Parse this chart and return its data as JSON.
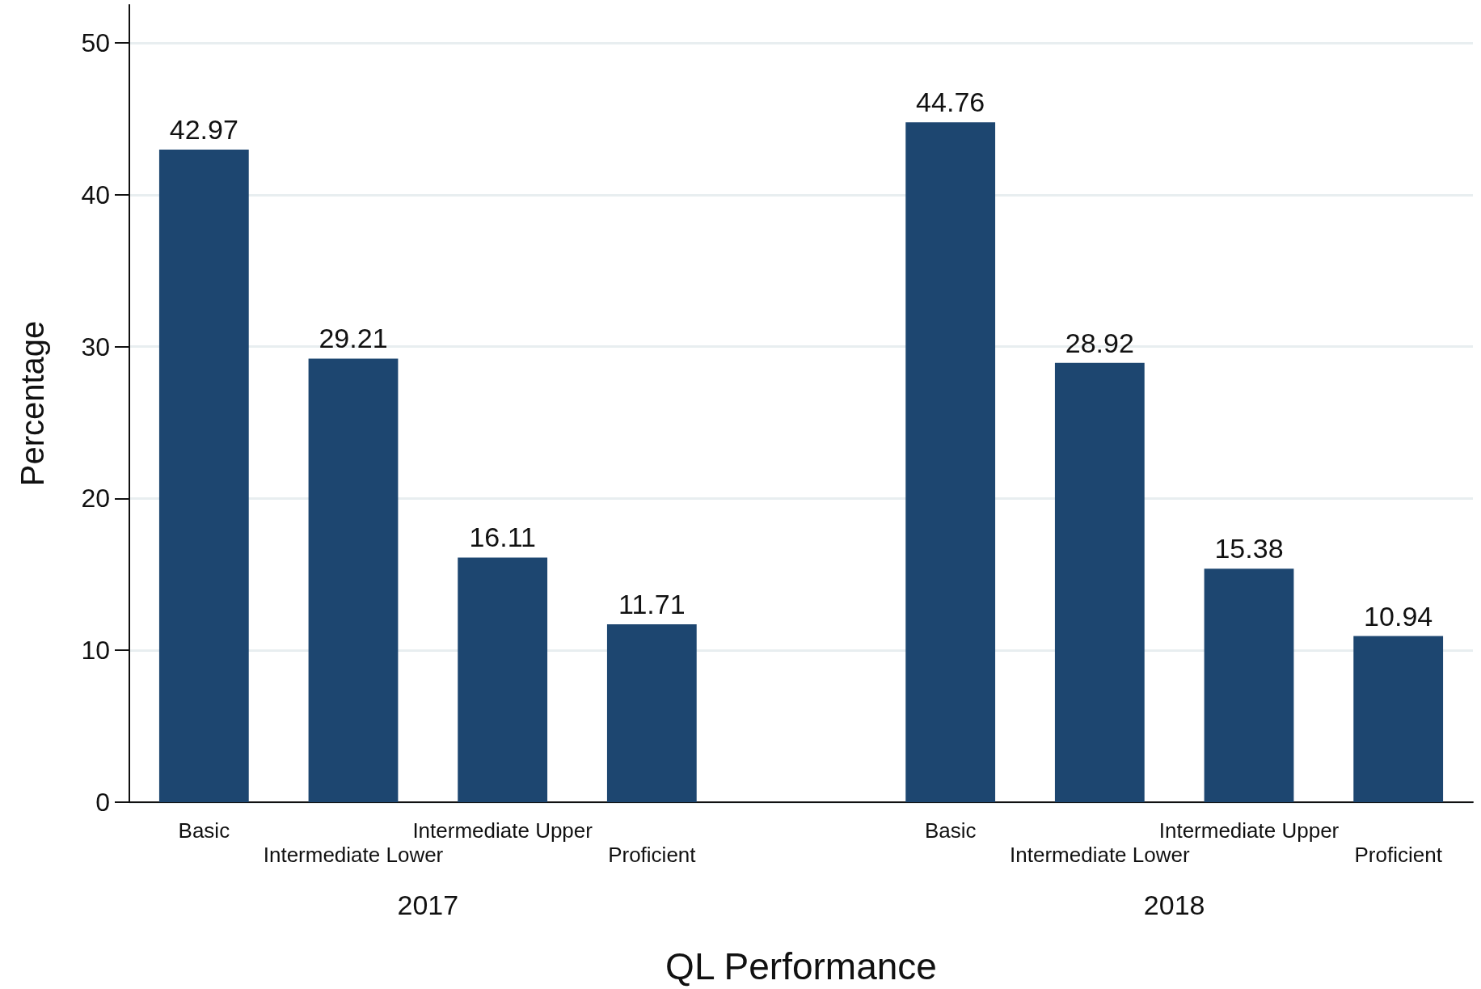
{
  "chart_data": {
    "type": "bar",
    "xlabel": "QL Performance",
    "ylabel": "Percentage",
    "categories": [
      "Basic",
      "Intermediate Lower",
      "Intermediate Upper",
      "Proficient",
      null,
      "Basic",
      "Intermediate Lower",
      "Intermediate Upper",
      "Proficient"
    ],
    "values": [
      42.97,
      29.21,
      16.11,
      11.71,
      null,
      44.76,
      28.92,
      15.38,
      10.94
    ],
    "color": "#1d4670",
    "data_labels": true,
    "ylim": [
      0,
      52.5
    ],
    "yticks": [
      0,
      10,
      20,
      30,
      40,
      50
    ],
    "grid": "y",
    "annotations": [
      "2017",
      "2018"
    ]
  }
}
